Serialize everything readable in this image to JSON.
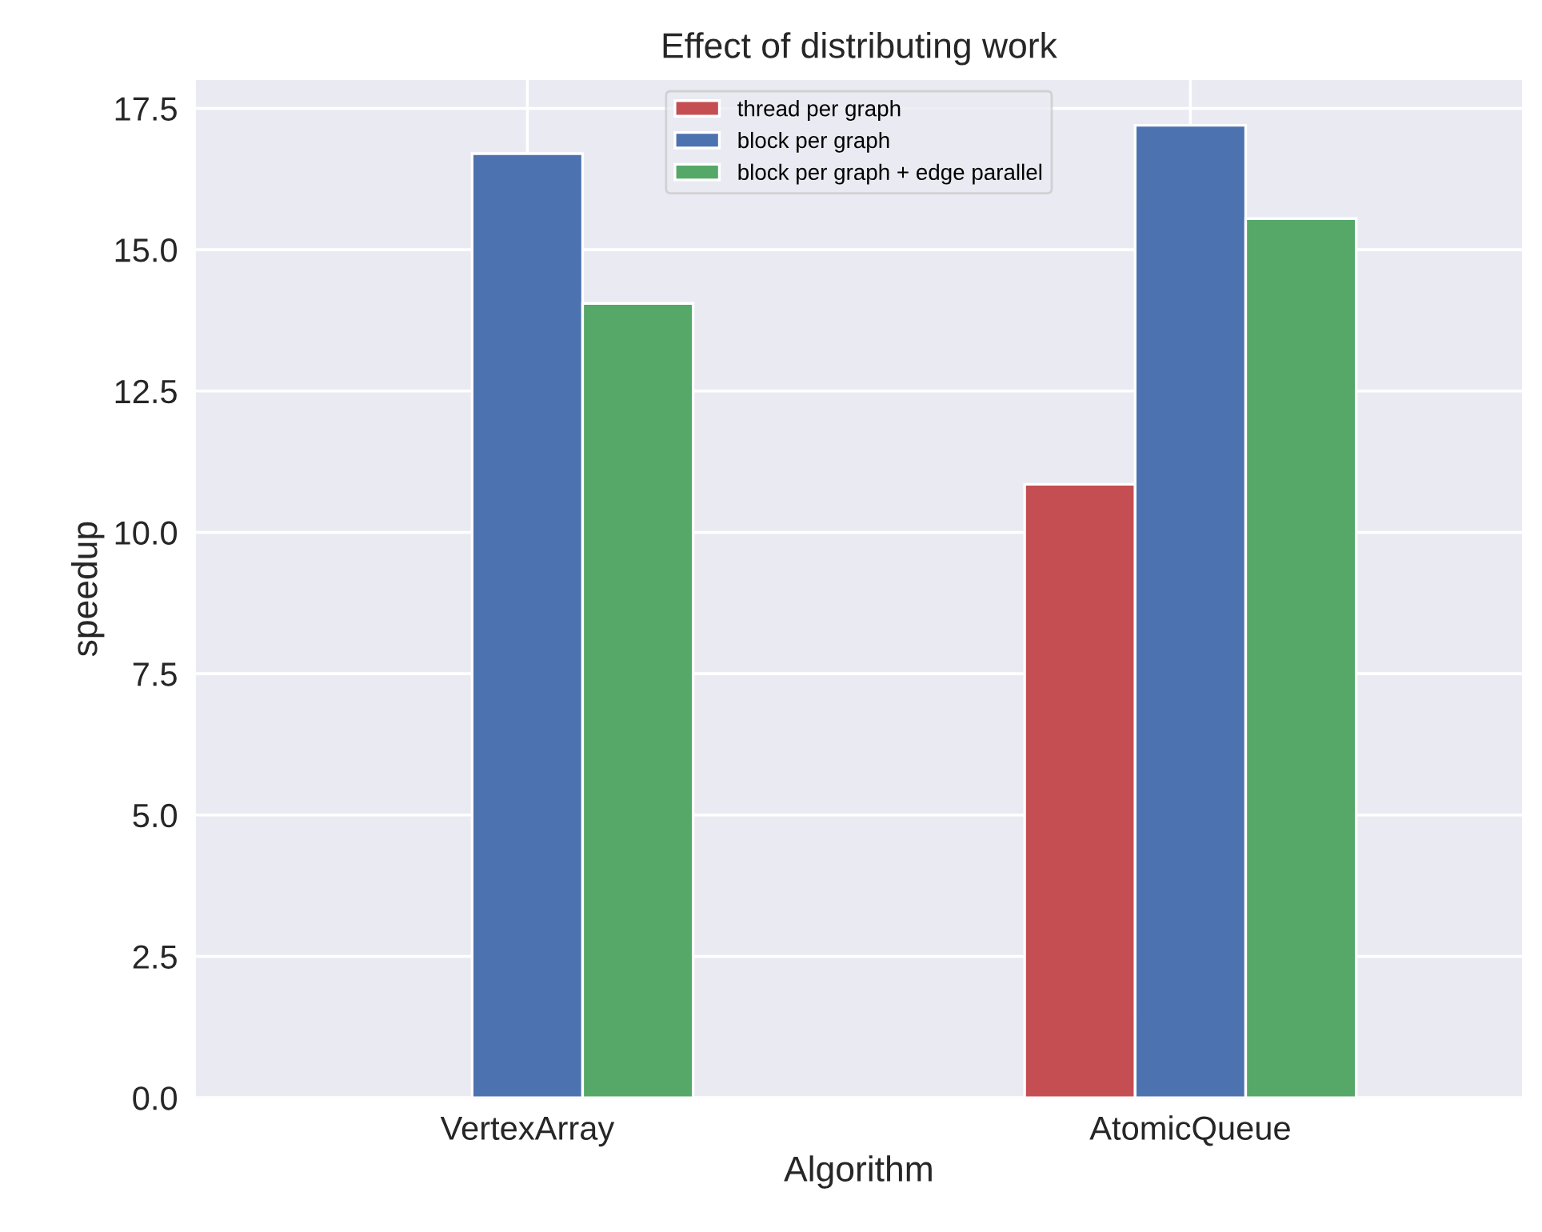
{
  "chart_data": {
    "type": "bar",
    "title": "Effect of distributing work",
    "xlabel": "Algorithm",
    "ylabel": "speedup",
    "categories": [
      "VertexArray",
      "AtomicQueue"
    ],
    "series": [
      {
        "name": "thread per graph",
        "color": "#c44e52",
        "values": [
          null,
          10.85
        ]
      },
      {
        "name": "block per graph",
        "color": "#4c72b0",
        "values": [
          16.7,
          17.2
        ]
      },
      {
        "name": "block per graph + edge parallel",
        "color": "#55a868",
        "values": [
          14.05,
          15.55
        ]
      }
    ],
    "ylim": [
      0,
      18.0
    ],
    "yticks": [
      {
        "value": 0,
        "label": "0.0"
      },
      {
        "value": 2.5,
        "label": "2.5"
      },
      {
        "value": 5,
        "label": "5.0"
      },
      {
        "value": 7.5,
        "label": "7.5"
      },
      {
        "value": 10,
        "label": "10.0"
      },
      {
        "value": 12.5,
        "label": "12.5"
      },
      {
        "value": 15,
        "label": "15.0"
      },
      {
        "value": 17.5,
        "label": "17.5"
      }
    ],
    "grid": true,
    "legend": "top"
  }
}
